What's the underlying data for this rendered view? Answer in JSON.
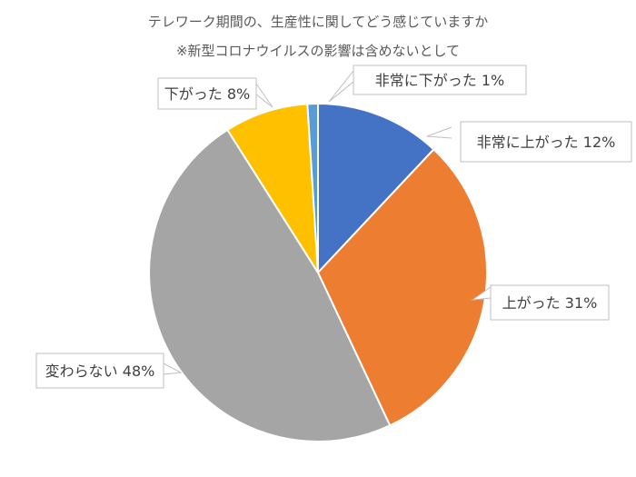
{
  "chart_data": {
    "type": "pie",
    "title": "テレワーク期間の、生産性に関してどう感じていますか",
    "subtitle": "※新型コロナウイルスの影響は含めないとして",
    "unit": "%",
    "start_angle_deg": 0,
    "direction": "clockwise",
    "slices": [
      {
        "name": "非常に上がった",
        "value": 12,
        "color": "#4472C4"
      },
      {
        "name": "上がった",
        "value": 31,
        "color": "#ED7D31"
      },
      {
        "name": "変わらない",
        "value": 48,
        "color": "#A5A5A5"
      },
      {
        "name": "下がった",
        "value": 8,
        "color": "#FFC000"
      },
      {
        "name": "非常に下がった",
        "value": 1,
        "color": "#5B9BD5"
      }
    ],
    "labels": [
      {
        "slice": 0,
        "text": "非常に上がった 12%"
      },
      {
        "slice": 1,
        "text": "上がった 31%"
      },
      {
        "slice": 2,
        "text": "変わらない 48%"
      },
      {
        "slice": 3,
        "text": "下がった 8%"
      },
      {
        "slice": 4,
        "text": "非常に下がった 1%"
      }
    ]
  }
}
